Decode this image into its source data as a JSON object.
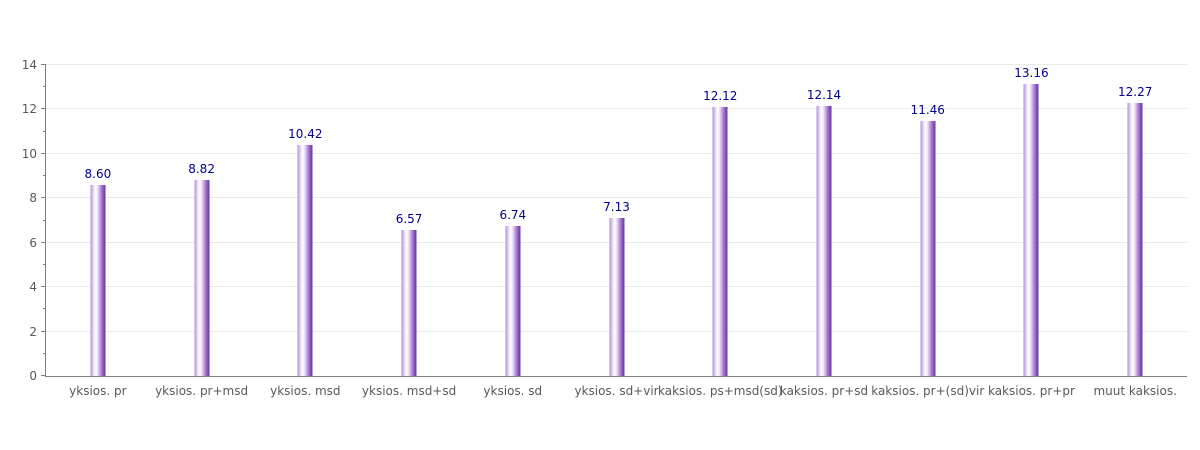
{
  "chart_data": {
    "type": "bar",
    "title": "",
    "categories": [
      "yksios. pr",
      "yksios. pr+msd",
      "yksios. msd",
      "yksios. msd+sd",
      "yksios. sd",
      "yksios. sd+vir",
      "kaksios. ps+msd(sd)",
      "kaksios. pr+sd",
      "kaksios. pr+(sd)vir",
      "kaksios. pr+pr",
      "muut kaksios."
    ],
    "values": [
      8.6,
      8.82,
      10.42,
      6.57,
      6.74,
      7.13,
      12.12,
      12.14,
      11.46,
      13.16,
      12.27
    ],
    "value_labels": [
      "8.60",
      "8.82",
      "10.42",
      "6.57",
      "6.74",
      "7.13",
      "12.12",
      "12.14",
      "11.46",
      "13.16",
      "12.27"
    ],
    "xlabel": "",
    "ylabel": "",
    "ylim": [
      0,
      14
    ],
    "yticks": [
      0,
      2,
      4,
      6,
      8,
      10,
      12,
      14
    ],
    "ytick_labels": [
      "0",
      "2",
      "4",
      "6",
      "8",
      "10",
      "12",
      "14"
    ],
    "minor_yticks": [
      1,
      3,
      5,
      7,
      9,
      11,
      13
    ],
    "grid": "horizontal-major",
    "legend": "none",
    "colors": {
      "bar_edge_left": "#aa82d2",
      "bar_highlight": "#ffffff",
      "bar_edge_right": "#5e3a9c",
      "value_label": "#00008b",
      "axis": "#808080",
      "gridline": "#e9e9e9",
      "tick_label": "#595959"
    }
  }
}
